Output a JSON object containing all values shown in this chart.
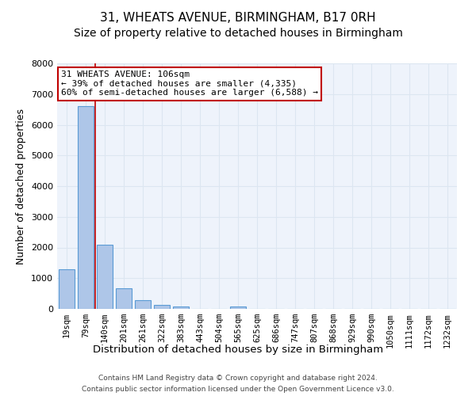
{
  "title1": "31, WHEATS AVENUE, BIRMINGHAM, B17 0RH",
  "title2": "Size of property relative to detached houses in Birmingham",
  "xlabel": "Distribution of detached houses by size in Birmingham",
  "ylabel": "Number of detached properties",
  "bar_labels": [
    "19sqm",
    "79sqm",
    "140sqm",
    "201sqm",
    "261sqm",
    "322sqm",
    "383sqm",
    "443sqm",
    "504sqm",
    "565sqm",
    "625sqm",
    "686sqm",
    "747sqm",
    "807sqm",
    "868sqm",
    "929sqm",
    "990sqm",
    "1050sqm",
    "1111sqm",
    "1172sqm",
    "1232sqm"
  ],
  "bar_heights": [
    1300,
    6600,
    2080,
    680,
    290,
    120,
    70,
    0,
    0,
    70,
    0,
    0,
    0,
    0,
    0,
    0,
    0,
    0,
    0,
    0,
    0
  ],
  "bar_color": "#aec6e8",
  "bar_edge_color": "#5b9bd5",
  "grid_color": "#dce6f1",
  "background_color": "#eef3fb",
  "vline_color": "#c00000",
  "ylim": [
    0,
    8000
  ],
  "yticks": [
    0,
    1000,
    2000,
    3000,
    4000,
    5000,
    6000,
    7000,
    8000
  ],
  "annotation_text": "31 WHEATS AVENUE: 106sqm\n← 39% of detached houses are smaller (4,335)\n60% of semi-detached houses are larger (6,588) →",
  "annotation_box_color": "#ffffff",
  "annotation_box_edge": "#c00000",
  "footer_line1": "Contains HM Land Registry data © Crown copyright and database right 2024.",
  "footer_line2": "Contains public sector information licensed under the Open Government Licence v3.0.",
  "title_fontsize": 11,
  "subtitle_fontsize": 10,
  "tick_fontsize": 7.5,
  "ylabel_fontsize": 9,
  "xlabel_fontsize": 9.5,
  "footer_fontsize": 6.5,
  "annotation_fontsize": 8
}
